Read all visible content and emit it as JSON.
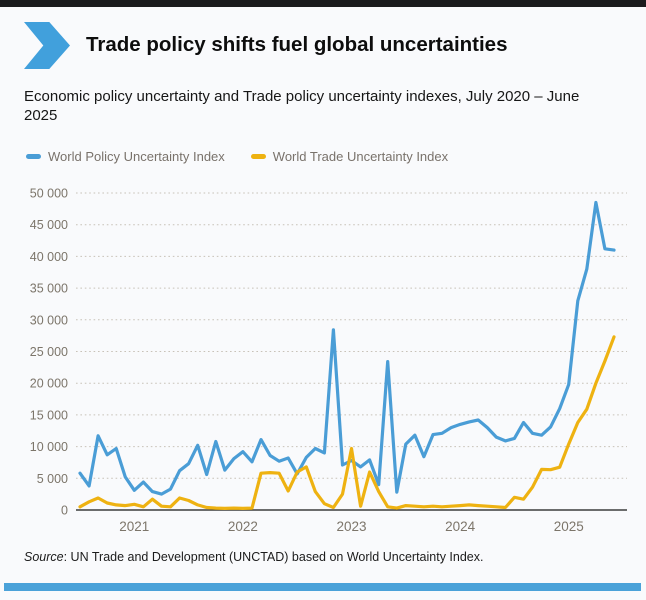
{
  "header": {
    "title": "Trade policy shifts fuel global uncertainties"
  },
  "subtitle": "Economic policy uncertainty and Trade policy uncertainty indexes, July 2020 – June 2025",
  "legend": [
    {
      "label": "World Policy Uncertainty Index",
      "color": "#4a9dd6"
    },
    {
      "label": "World Trade Uncertainty Index",
      "color": "#eeb211"
    }
  ],
  "source": {
    "label": "Source",
    "text": ": UN Trade and Development (UNCTAD) based on World Uncertainty Index."
  },
  "colors": {
    "top_bar": "#1b1b1d",
    "bottom_bar": "#4ba2d9",
    "chevron": "#41a0dc",
    "grid_dots": "#c8c2b8",
    "axis_line": "#3c3c3c",
    "tick_text": "#7c756a"
  },
  "chart_data": {
    "type": "line",
    "title": "Economic policy uncertainty and Trade policy uncertainty indexes, July 2020 – June 2025",
    "xlabel": "",
    "ylabel": "",
    "ylim": [
      0,
      50000
    ],
    "grid": "horizontal-dotted",
    "legend_position": "top",
    "x_months": [
      "2020-07",
      "2020-08",
      "2020-09",
      "2020-10",
      "2020-11",
      "2020-12",
      "2021-01",
      "2021-02",
      "2021-03",
      "2021-04",
      "2021-05",
      "2021-06",
      "2021-07",
      "2021-08",
      "2021-09",
      "2021-10",
      "2021-11",
      "2021-12",
      "2022-01",
      "2022-02",
      "2022-03",
      "2022-04",
      "2022-05",
      "2022-06",
      "2022-07",
      "2022-08",
      "2022-09",
      "2022-10",
      "2022-11",
      "2022-12",
      "2023-01",
      "2023-02",
      "2023-03",
      "2023-04",
      "2023-05",
      "2023-06",
      "2023-07",
      "2023-08",
      "2023-09",
      "2023-10",
      "2023-11",
      "2023-12",
      "2024-01",
      "2024-02",
      "2024-03",
      "2024-04",
      "2024-05",
      "2024-06",
      "2024-07",
      "2024-08",
      "2024-09",
      "2024-10",
      "2024-11",
      "2024-12",
      "2025-01",
      "2025-02",
      "2025-03",
      "2025-04",
      "2025-05",
      "2025-06"
    ],
    "series": [
      {
        "name": "World Policy Uncertainty Index",
        "color": "#4a9dd6",
        "values": [
          5800,
          3800,
          11700,
          8700,
          9700,
          5200,
          3100,
          4400,
          2900,
          2500,
          3300,
          6200,
          7300,
          10200,
          5600,
          10800,
          6300,
          8100,
          9200,
          7600,
          11100,
          8600,
          7700,
          8200,
          5700,
          8300,
          9700,
          9000,
          28400,
          7100,
          7800,
          6800,
          7900,
          4000,
          23400,
          2800,
          10400,
          11800,
          8400,
          11900,
          12100,
          13000,
          13500,
          13900,
          14200,
          13000,
          11500,
          10900,
          11300,
          13800,
          12100,
          11800,
          13100,
          16000,
          19800,
          33000,
          38000,
          48500,
          41200,
          41000
        ]
      },
      {
        "name": "World Trade Uncertainty Index",
        "color": "#eeb211",
        "values": [
          500,
          1300,
          1900,
          1100,
          800,
          700,
          900,
          500,
          1700,
          600,
          500,
          1900,
          1500,
          800,
          400,
          300,
          250,
          300,
          250,
          300,
          5800,
          5900,
          5800,
          3000,
          6000,
          6800,
          2900,
          1000,
          400,
          2500,
          9700,
          600,
          6000,
          2900,
          500,
          300,
          700,
          600,
          500,
          600,
          500,
          600,
          700,
          800,
          700,
          600,
          500,
          400,
          2000,
          1700,
          3600,
          6400,
          6350,
          6750,
          10400,
          13800,
          15900,
          20000,
          23500,
          27300
        ]
      }
    ],
    "y_ticks": [
      0,
      5000,
      10000,
      15000,
      20000,
      25000,
      30000,
      35000,
      40000,
      45000,
      50000
    ],
    "y_tick_labels": [
      "0",
      "5 000",
      "10 000",
      "15 000",
      "20 000",
      "25 000",
      "30 000",
      "35 000",
      "40 000",
      "45 000",
      "50 000"
    ],
    "x_tick_labels": [
      "2021",
      "2022",
      "2023",
      "2024",
      "2025"
    ],
    "x_tick_month_indices": [
      6,
      18,
      30,
      42,
      54
    ]
  }
}
